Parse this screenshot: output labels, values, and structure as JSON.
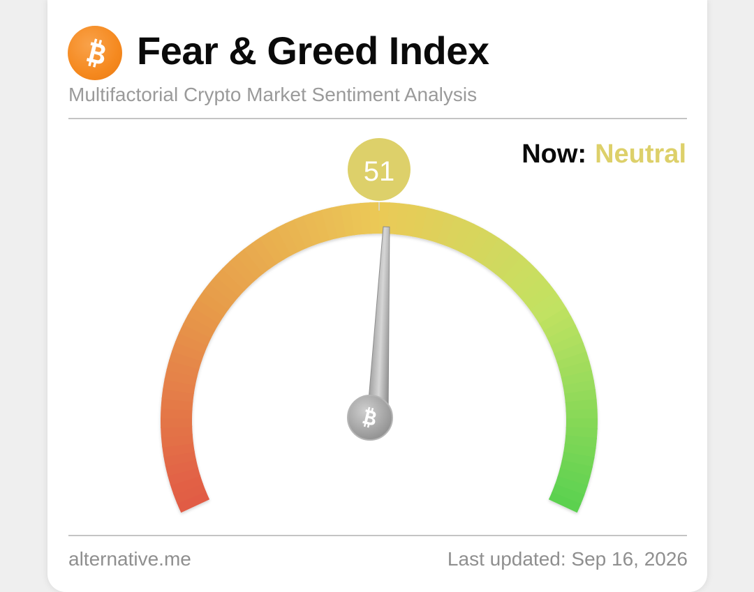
{
  "header": {
    "title": "Fear & Greed Index",
    "subtitle": "Multifactorial Crypto Market Sentiment Analysis",
    "logo_icon": "bitcoin-icon",
    "logo_color": "#f7931a"
  },
  "status": {
    "now_label": "Now:",
    "classification": "Neutral",
    "classification_color": "#ddd06a"
  },
  "gauge": {
    "value": 51,
    "value_text": "51",
    "min": 0,
    "max": 100,
    "badge_color": "#ddd06a",
    "needle_icon": "bitcoin-icon",
    "colors": [
      "#e15b45",
      "#e79a4a",
      "#ebc957",
      "#c2e262",
      "#5cd150"
    ]
  },
  "footer": {
    "source": "alternative.me",
    "last_updated": "Last updated: Sep 16, 2026"
  }
}
